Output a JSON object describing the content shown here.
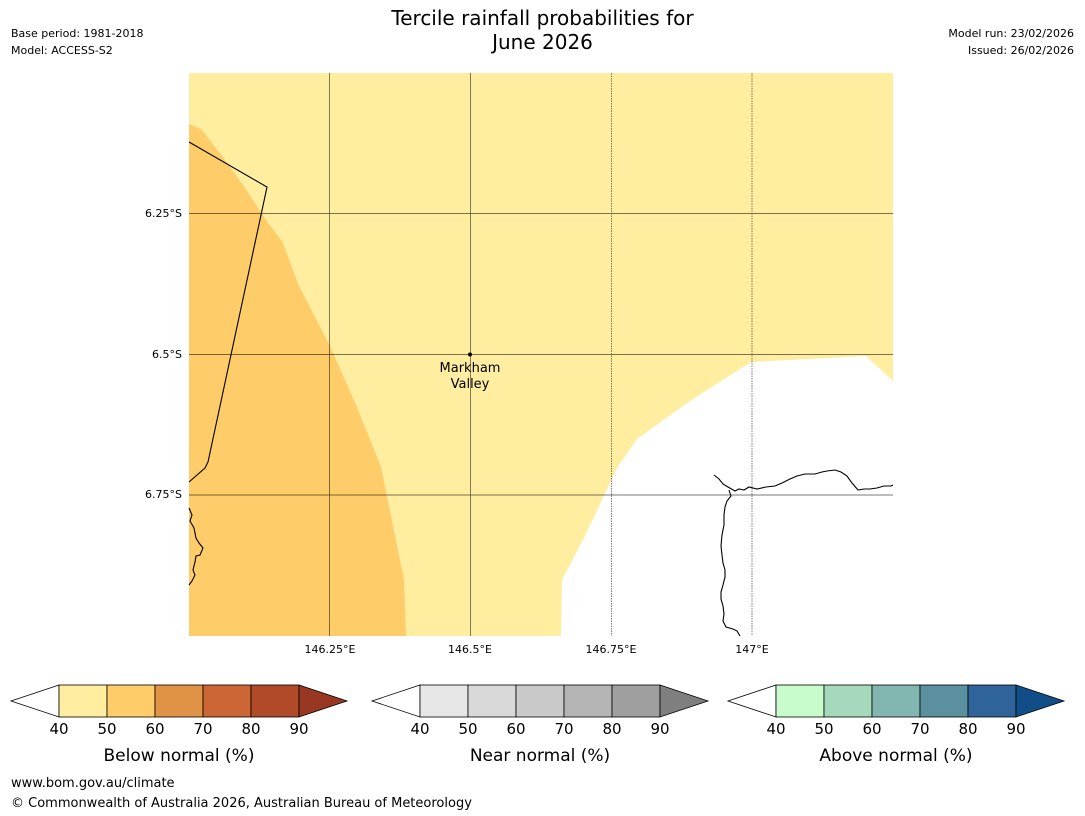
{
  "title": {
    "line1": "Tercile rainfall probabilities for",
    "line2": "June 2026"
  },
  "meta_left": {
    "base_period": "Base period: 1981-2018",
    "model": "Model: ACCESS-S2"
  },
  "meta_right": {
    "model_run": "Model run: 23/02/2026",
    "issued": "Issued: 26/02/2026"
  },
  "map": {
    "lat_labels": [
      "6.25°S",
      "6.5°S",
      "6.75°S"
    ],
    "lon_labels": [
      "146.25°E",
      "146.5°E",
      "146.75°E",
      "147°E"
    ],
    "place": {
      "line1": "Markham",
      "line2": "Valley"
    }
  },
  "colorbars": [
    {
      "label": "Below normal (%)",
      "ticks": [
        "40",
        "50",
        "60",
        "70",
        "80",
        "90"
      ],
      "colors": [
        "#ffeda0",
        "#fecc68",
        "#e09345",
        "#cc6635",
        "#b04a28"
      ],
      "min_color": "#ffffff",
      "max_color": "#983823"
    },
    {
      "label": "Near normal (%)",
      "ticks": [
        "40",
        "50",
        "60",
        "70",
        "80",
        "90"
      ],
      "colors": [
        "#e7e7e7",
        "#d9d9d9",
        "#c9c9c9",
        "#b4b4b4",
        "#9f9f9f"
      ],
      "min_color": "#ffffff",
      "max_color": "#7f7f7f"
    },
    {
      "label": "Above normal (%)",
      "ticks": [
        "40",
        "50",
        "60",
        "70",
        "80",
        "90"
      ],
      "colors": [
        "#c7fbcb",
        "#a5d9bc",
        "#82b6b1",
        "#5b919f",
        "#2e6499"
      ],
      "min_color": "#ffffff",
      "max_color": "#114d86"
    }
  ],
  "footer": {
    "url": "www.bom.gov.au/climate",
    "copyright": "© Commonwealth of Australia 2026, Australian Bureau of Meteorology"
  },
  "colors": {
    "below_50": "#ffeda0",
    "below_60": "#fecc68",
    "grid": "#000000",
    "coast": "#000000"
  }
}
